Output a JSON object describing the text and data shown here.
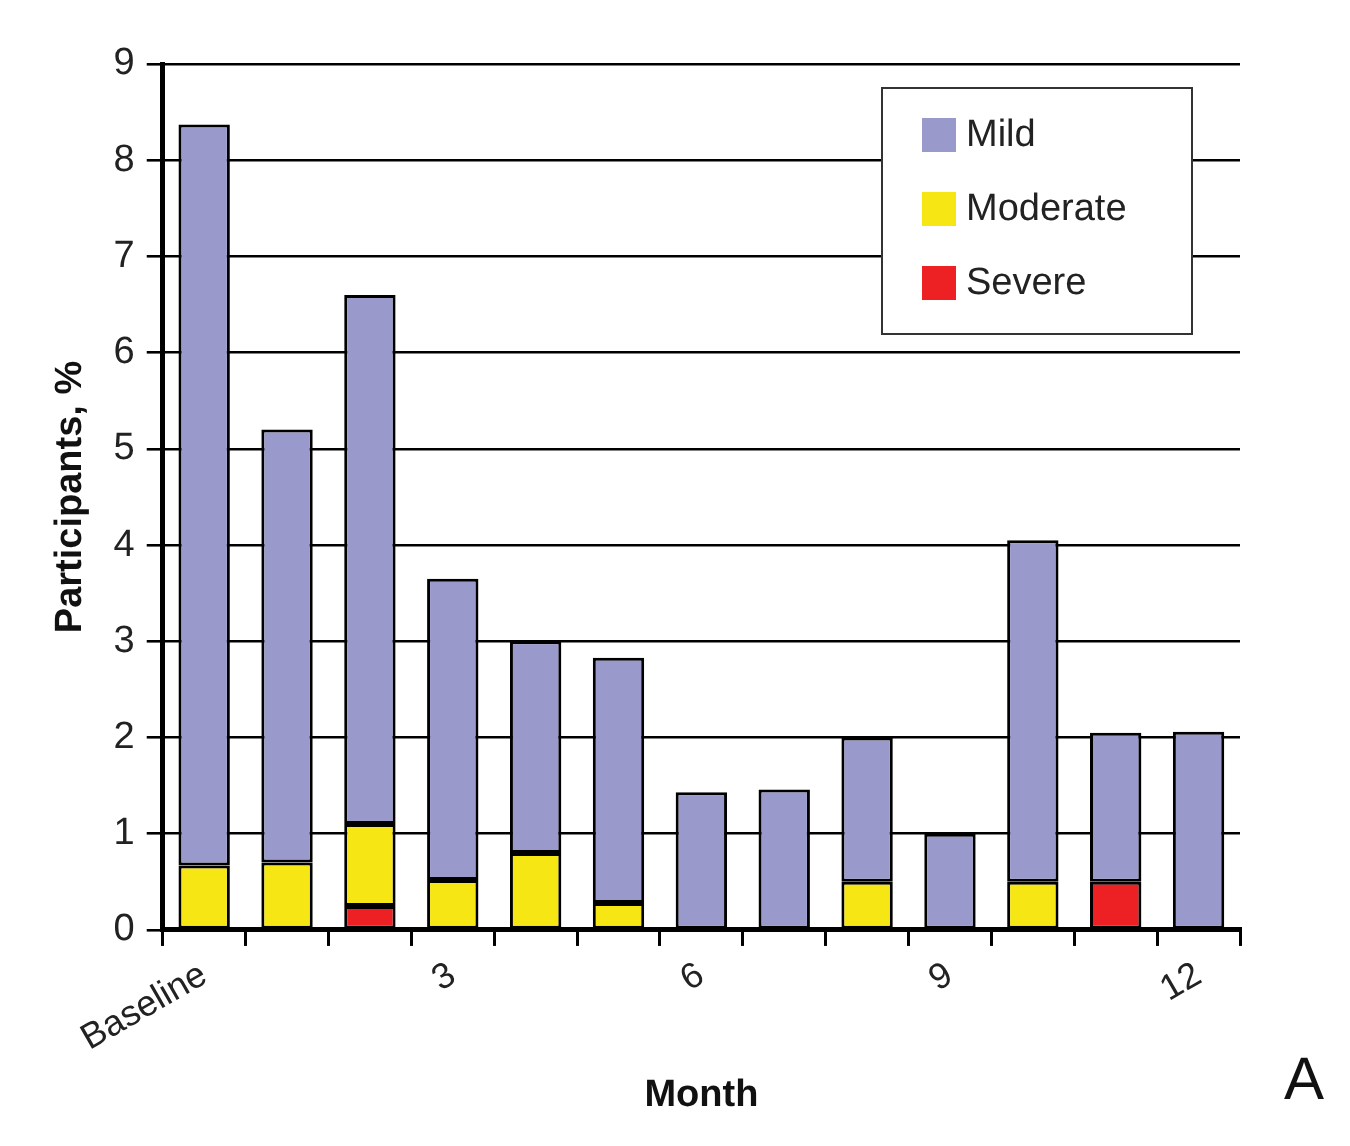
{
  "chart_data": {
    "type": "bar",
    "stacked": true,
    "xlabel": "Month",
    "ylabel": "Participants, %",
    "categories": [
      "Baseline",
      null,
      null,
      "3",
      null,
      null,
      "6",
      null,
      null,
      "9",
      null,
      null,
      "12"
    ],
    "series": [
      {
        "name": "Severe",
        "color": "#ed2024",
        "values": [
          null,
          null,
          0.25,
          null,
          null,
          null,
          null,
          null,
          null,
          null,
          null,
          0.5,
          null
        ]
      },
      {
        "name": "Moderate",
        "color": "#f5e614",
        "values": [
          0.67,
          0.7,
          0.85,
          0.52,
          0.8,
          0.28,
          null,
          null,
          0.5,
          null,
          0.5,
          null,
          null
        ]
      },
      {
        "name": "Mild",
        "color": "#9999cc",
        "values": [
          7.7,
          4.5,
          5.5,
          3.13,
          2.2,
          2.55,
          1.43,
          1.46,
          1.5,
          1.0,
          3.55,
          1.55,
          2.06
        ]
      }
    ],
    "ylim": [
      0,
      9
    ],
    "yticks": [
      0,
      1,
      2,
      3,
      4,
      5,
      6,
      7,
      8,
      9
    ],
    "grid": "y",
    "legend": "top right",
    "annotations": [
      "A"
    ]
  }
}
